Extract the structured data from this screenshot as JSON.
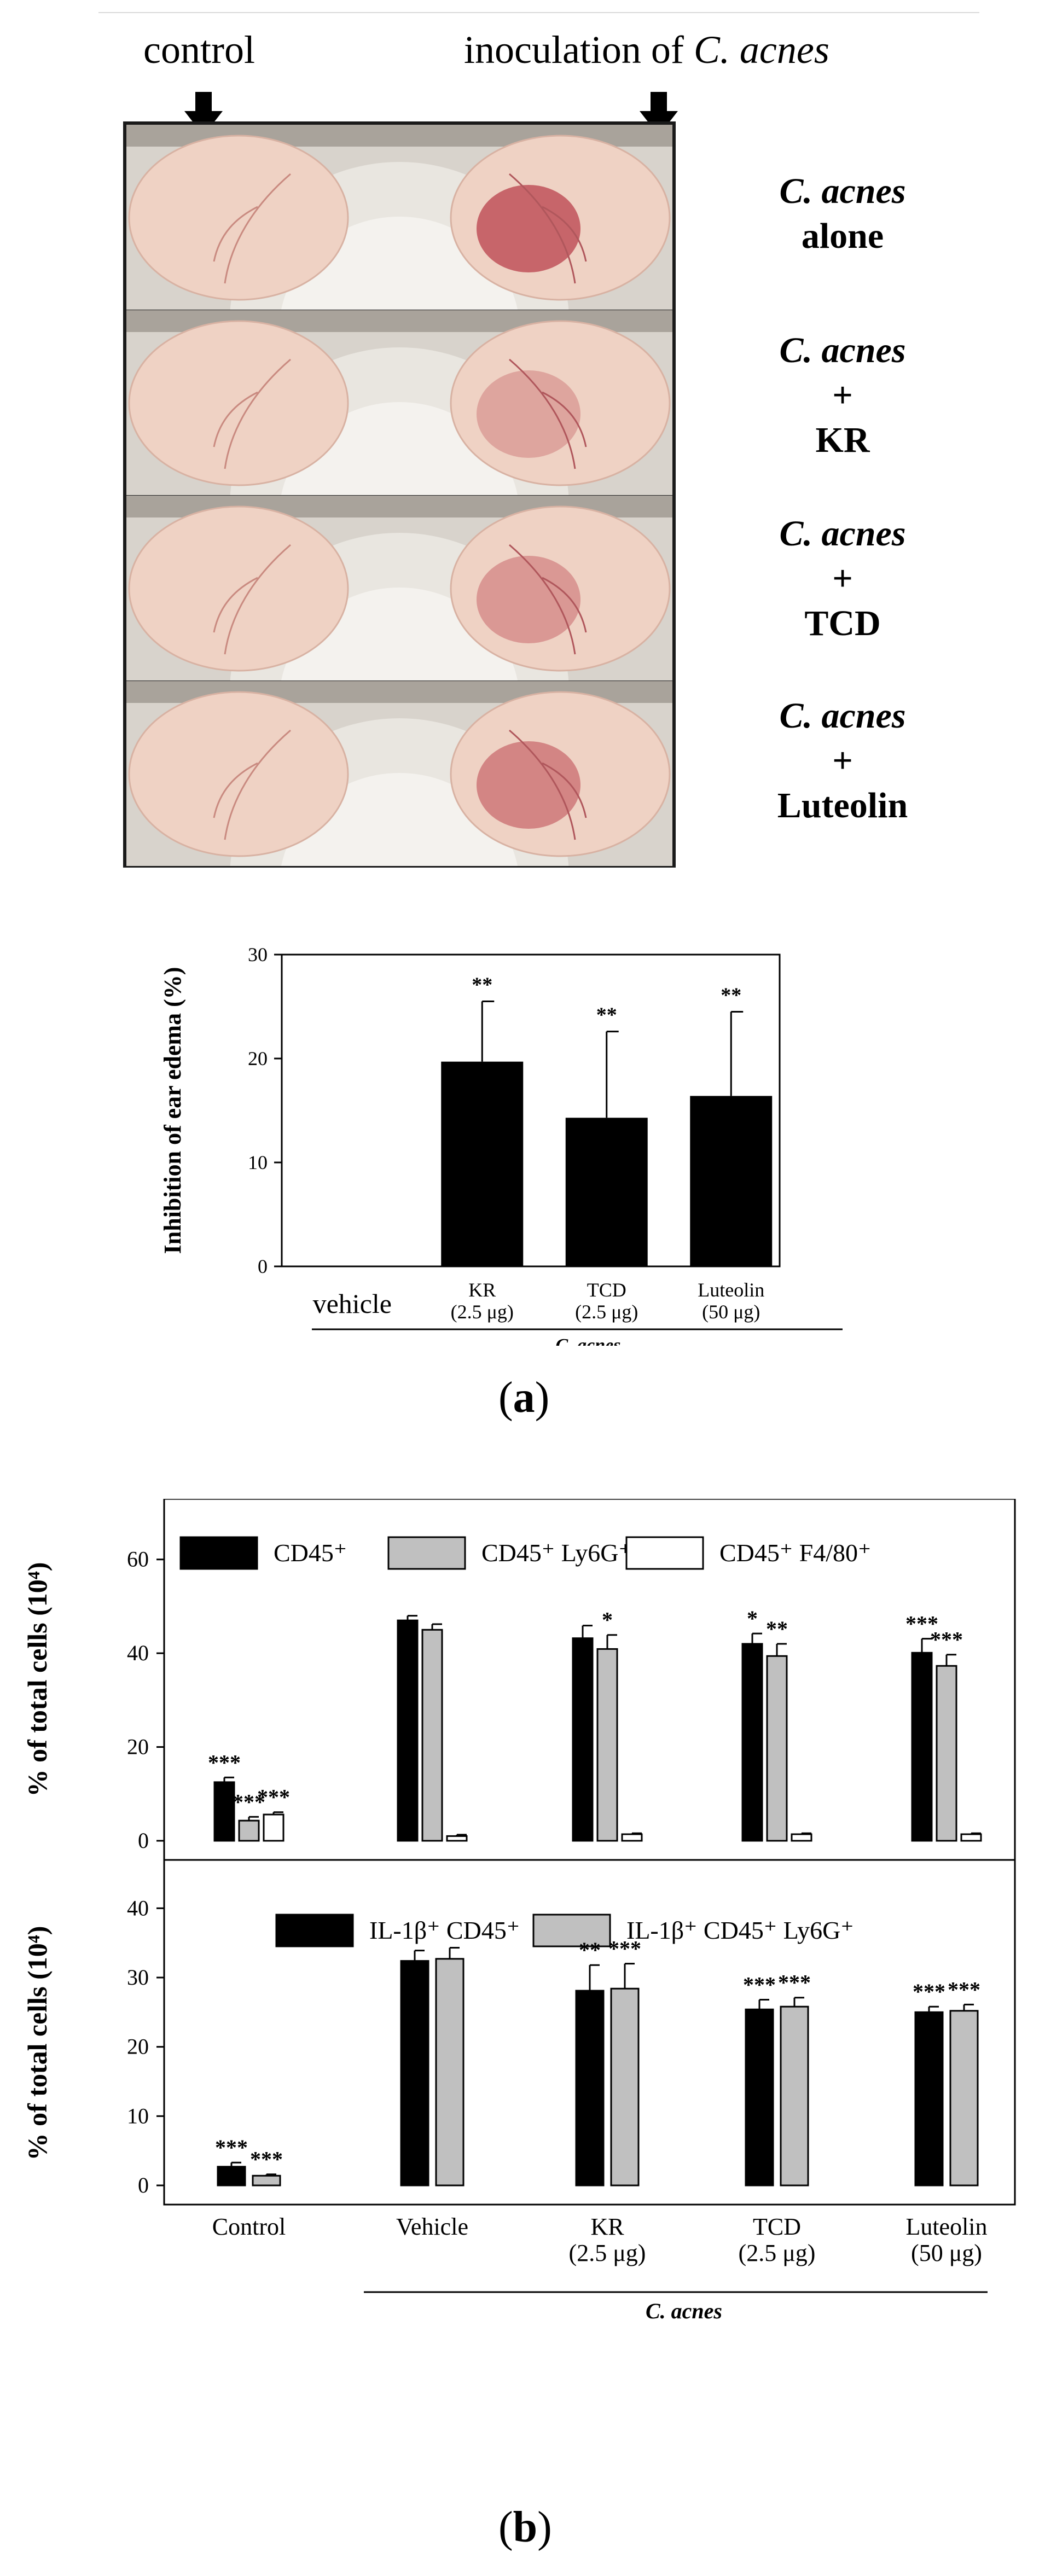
{
  "header": {
    "control_label": "control",
    "inoculation_prefix": "inoculation of ",
    "inoculation_species": "C. acnes"
  },
  "photo_rows": [
    {
      "species": "C. acnes",
      "plus": "",
      "agent": "alone"
    },
    {
      "species": "C. acnes",
      "plus": "+",
      "agent": "KR"
    },
    {
      "species": "C. acnes",
      "plus": "+",
      "agent": "TCD"
    },
    {
      "species": "C. acnes",
      "plus": "+",
      "agent": "Luteolin"
    }
  ],
  "captions": {
    "a": "a",
    "b": "b"
  },
  "colors": {
    "black_bar": "#000000",
    "gray_bar": "#c0c0c0",
    "white_bar": "#ffffff",
    "skin": "#efd2c4",
    "fur": "#e9e6e0",
    "inflamed": "#c0525a"
  },
  "chart_data": [
    {
      "type": "bar",
      "id": "a",
      "ylabel": "Inhibition of ear edema (%)",
      "categories": [
        "vehicle",
        "KR (2.5 μg)",
        "TCD (2.5 μg)",
        "Luteolin (50 μg)"
      ],
      "category_lines": [
        [
          "vehicle"
        ],
        [
          "KR",
          "(2.5 μg)"
        ],
        [
          "TCD",
          "(2.5 μg)"
        ],
        [
          "Luteolin",
          "(50 μg)"
        ]
      ],
      "values": [
        0,
        19.7,
        14.3,
        16.4
      ],
      "errors": [
        0,
        5.8,
        8.3,
        8.1
      ],
      "significance": [
        "",
        "**",
        "**",
        "**"
      ],
      "ylim": [
        0,
        30
      ],
      "yticks": [
        0,
        10,
        20,
        30
      ],
      "group_label": "C. acnes"
    },
    {
      "type": "bar",
      "id": "b-top",
      "ylabel": "% of total cells (10⁴)",
      "categories": [
        "Control",
        "Vehicle",
        "KR (2.5 μg)",
        "TCD (2.5 μg)",
        "Luteolin (50 μg)"
      ],
      "legend_position": "top",
      "series": [
        {
          "name": "CD45⁺",
          "color": "#000000",
          "values": [
            12.5,
            47.0,
            43.2,
            42.0,
            40.1
          ],
          "errors": [
            1.0,
            1.0,
            2.7,
            2.2,
            3.0
          ],
          "significance": [
            "***",
            "",
            "",
            "*",
            "***"
          ]
        },
        {
          "name": "CD45⁺ Ly6G⁺",
          "color": "#c0c0c0",
          "values": [
            4.3,
            45.0,
            40.9,
            39.4,
            37.3
          ],
          "errors": [
            0.8,
            1.2,
            3.0,
            2.6,
            2.4
          ],
          "significance": [
            "***",
            "",
            "*",
            "**",
            "***"
          ]
        },
        {
          "name": "CD45⁺ F4/80⁺",
          "color": "#ffffff",
          "values": [
            5.6,
            1.0,
            1.4,
            1.4,
            1.4
          ],
          "errors": [
            0.5,
            0.3,
            0.2,
            0.2,
            0.2
          ],
          "significance": [
            "***",
            "",
            "",
            "",
            ""
          ]
        }
      ],
      "ylim": [
        0,
        70
      ],
      "yticks": [
        0,
        20,
        40,
        60
      ]
    },
    {
      "type": "bar",
      "id": "b-bottom",
      "ylabel": "% of total cells (10⁴)",
      "categories": [
        "Control",
        "Vehicle",
        "KR (2.5 μg)",
        "TCD (2.5 μg)",
        "Luteolin (50 μg)"
      ],
      "category_lines": [
        [
          "Control"
        ],
        [
          "Vehicle"
        ],
        [
          "KR",
          "(2.5 μg)"
        ],
        [
          "TCD",
          "(2.5 μg)"
        ],
        [
          "Luteolin",
          "(50 μg)"
        ]
      ],
      "legend_position": "top",
      "series": [
        {
          "name": "IL-1β⁺ CD45⁺",
          "color": "#000000",
          "values": [
            2.7,
            32.4,
            28.1,
            25.4,
            25.0
          ],
          "errors": [
            0.6,
            1.5,
            3.7,
            1.4,
            0.8
          ],
          "significance": [
            "***",
            "",
            "**",
            "***",
            "***"
          ]
        },
        {
          "name": "IL-1β⁺ CD45⁺ Ly6G⁺",
          "color": "#c0c0c0",
          "values": [
            1.4,
            32.7,
            28.4,
            25.8,
            25.2
          ],
          "errors": [
            0.2,
            1.6,
            3.6,
            1.3,
            0.9
          ],
          "significance": [
            "***",
            "",
            "***",
            "***",
            "***"
          ]
        }
      ],
      "ylim": [
        0,
        45
      ],
      "yticks": [
        0,
        10,
        20,
        30,
        40
      ],
      "group_label": "C. acnes"
    }
  ]
}
